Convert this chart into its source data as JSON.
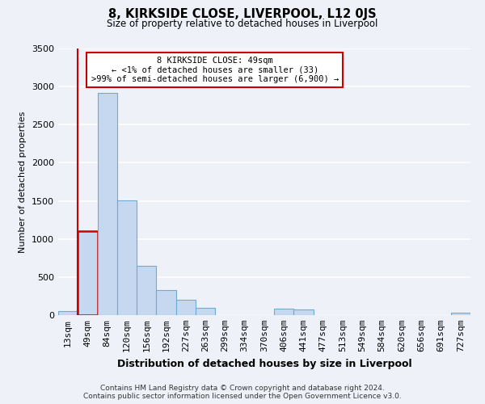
{
  "title": "8, KIRKSIDE CLOSE, LIVERPOOL, L12 0JS",
  "subtitle": "Size of property relative to detached houses in Liverpool",
  "xlabel": "Distribution of detached houses by size in Liverpool",
  "ylabel": "Number of detached properties",
  "bar_color": "#c5d8f0",
  "bar_edge_color": "#6eaad4",
  "highlight_color": "#cc0000",
  "categories": [
    "13sqm",
    "49sqm",
    "84sqm",
    "120sqm",
    "156sqm",
    "192sqm",
    "227sqm",
    "263sqm",
    "299sqm",
    "334sqm",
    "370sqm",
    "406sqm",
    "441sqm",
    "477sqm",
    "513sqm",
    "549sqm",
    "584sqm",
    "620sqm",
    "656sqm",
    "691sqm",
    "727sqm"
  ],
  "values": [
    50,
    1100,
    2920,
    1510,
    650,
    330,
    200,
    100,
    0,
    0,
    0,
    85,
    70,
    0,
    0,
    0,
    0,
    0,
    0,
    0,
    30
  ],
  "ylim": [
    0,
    3500
  ],
  "annotation_line1": "8 KIRKSIDE CLOSE: 49sqm",
  "annotation_line2": "← <1% of detached houses are smaller (33)",
  "annotation_line3": ">99% of semi-detached houses are larger (6,900) →",
  "highlight_bar_index": 1,
  "footer_line1": "Contains HM Land Registry data © Crown copyright and database right 2024.",
  "footer_line2": "Contains public sector information licensed under the Open Government Licence v3.0.",
  "background_color": "#eef2f8",
  "grid_color": "#ffffff",
  "yticks": [
    0,
    500,
    1000,
    1500,
    2000,
    2500,
    3000,
    3500
  ]
}
